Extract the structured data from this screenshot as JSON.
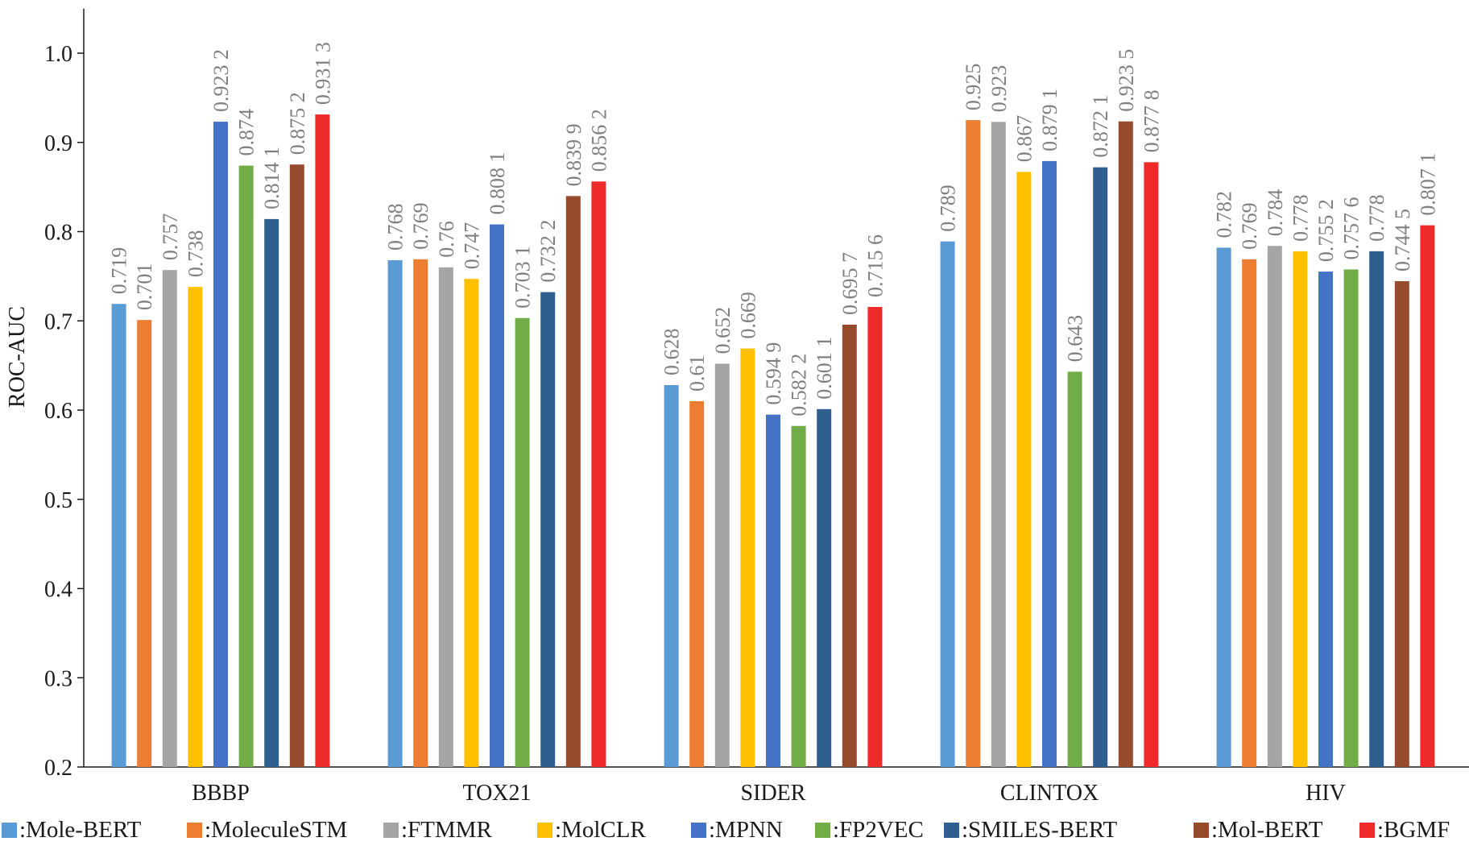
{
  "chart_data": {
    "type": "bar",
    "title": "",
    "xlabel": "",
    "ylabel": "ROC-AUC",
    "ylim": [
      0.2,
      1.05
    ],
    "yticks": [
      "0.2",
      "0.3",
      "0.4",
      "0.5",
      "0.6",
      "0.7",
      "0.8",
      "0.9",
      "1.0"
    ],
    "grid": false,
    "legend_position": "bottom",
    "categories": [
      "BBBP",
      "TOX21",
      "SIDER",
      "CLINTOX",
      "HIV"
    ],
    "series": [
      {
        "name": ":Mole-BERT",
        "color": "#5B9BD5",
        "values": [
          0.719,
          0.768,
          0.628,
          0.789,
          0.782
        ],
        "labels": [
          "0.719",
          "0.768",
          "0.628",
          "0.789",
          "0.782"
        ]
      },
      {
        "name": ":MoleculeSTM",
        "color": "#ED7D31",
        "values": [
          0.701,
          0.769,
          0.61,
          0.925,
          0.769
        ],
        "labels": [
          "0.701",
          "0.769",
          "0.61",
          "0.925",
          "0.769"
        ]
      },
      {
        "name": ":FTMMR",
        "color": "#A5A5A5",
        "values": [
          0.757,
          0.76,
          0.652,
          0.923,
          0.784
        ],
        "labels": [
          "0.757",
          "0.76",
          "0.652",
          "0.923",
          "0.784"
        ]
      },
      {
        "name": ":MolCLR",
        "color": "#FFC000",
        "values": [
          0.738,
          0.747,
          0.669,
          0.867,
          0.778
        ],
        "labels": [
          "0.738",
          "0.747",
          "0.669",
          "0.867",
          "0.778"
        ]
      },
      {
        "name": ":MPNN",
        "color": "#4472C4",
        "values": [
          0.9232,
          0.8081,
          0.5949,
          0.8791,
          0.7552
        ],
        "labels": [
          "0.923 2",
          "0.808 1",
          "0.594 9",
          "0.879 1",
          "0.755 2"
        ]
      },
      {
        "name": ":FP2VEC",
        "color": "#70AD47",
        "values": [
          0.874,
          0.7031,
          0.5822,
          0.643,
          0.7576
        ],
        "labels": [
          "0.874",
          "0.703 1",
          "0.582 2",
          "0.643",
          "0.757 6"
        ]
      },
      {
        "name": ":SMILES-BERT",
        "color": "#2F5F8F",
        "values": [
          0.8141,
          0.7322,
          0.6011,
          0.8721,
          0.778
        ],
        "labels": [
          "0.814 1",
          "0.732 2",
          "0.601 1",
          "0.872 1",
          "0.778"
        ]
      },
      {
        "name": ":Mol-BERT",
        "color": "#964B2C",
        "values": [
          0.8752,
          0.8399,
          0.6957,
          0.9235,
          0.7445
        ],
        "labels": [
          "0.875 2",
          "0.839 9",
          "0.695 7",
          "0.923 5",
          "0.744 5"
        ]
      },
      {
        "name": ":BGMF",
        "color": "#EE2A2A",
        "values": [
          0.9313,
          0.8562,
          0.7156,
          0.8778,
          0.8071
        ],
        "labels": [
          "0.931 3",
          "0.856 2",
          "0.715 6",
          "0.877 8",
          "0.807 1"
        ]
      }
    ]
  }
}
